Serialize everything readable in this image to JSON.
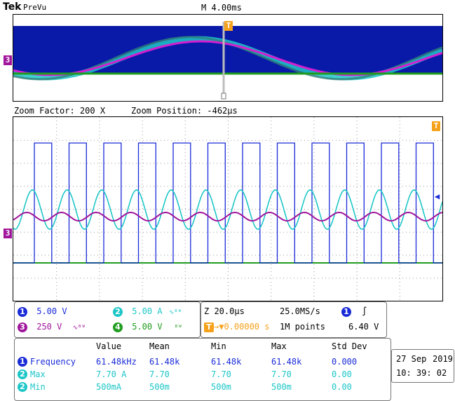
{
  "header": {
    "brand": "Tek",
    "mode": "PreVu",
    "timebase": "M 4.00ms"
  },
  "zoom": {
    "factor": "Zoom Factor: 200 X",
    "position": "Zoom Position: -462µs"
  },
  "markers": {
    "ch3_level": "3",
    "trigger": "T"
  },
  "channels": [
    {
      "num": "1",
      "scale": "5.00 V",
      "suffix": "",
      "color": "#1a2bd8"
    },
    {
      "num": "2",
      "scale": "5.00 A",
      "suffix": "∿ᴮᵂ",
      "color": "#1ec6c8"
    },
    {
      "num": "3",
      "scale": "250 V",
      "suffix": "∿ᴮᵂ",
      "color": "#a0159c"
    },
    {
      "num": "4",
      "scale": "5.00 V",
      "suffix": "ᴮᵂ",
      "color": "#1f9c1f"
    }
  ],
  "timebox": {
    "zoom_time": "Z 20.0µs",
    "sample_rate": "25.0MS/s",
    "trig_offset": "▼0.00000 s",
    "record": "1M points",
    "trig_source": "1",
    "trig_slope": "∫",
    "trig_level": "6.40 V"
  },
  "measurements": {
    "headers": [
      "Value",
      "Mean",
      "Min",
      "Max",
      "Std Dev"
    ],
    "rows": [
      {
        "ch": "1",
        "name": "Frequency",
        "value": "61.48kHz",
        "mean": "61.48k",
        "min": "61.48k",
        "max": "61.48k",
        "std": "0.000",
        "color": "#1a2bd8"
      },
      {
        "ch": "2",
        "name": "Max",
        "value": "7.70 A",
        "mean": "7.70",
        "min": "7.70",
        "max": "7.70",
        "std": "0.00",
        "color": "#1ec6c8"
      },
      {
        "ch": "2",
        "name": "Min",
        "value": "500mA",
        "mean": "500m",
        "min": "500m",
        "max": "500m",
        "std": "0.00",
        "color": "#1ec6c8"
      }
    ]
  },
  "date": {
    "day_month": "27 Sep",
    "year": "2019",
    "time": "10: 39: 02"
  },
  "colors": {
    "ch1": "#1a2bd8",
    "ch2": "#1ec6c8",
    "ch3": "#a0159c",
    "ch4": "#1f9c1f",
    "trigger": "#f5a11b",
    "preview_bg": "#0a1aa8"
  }
}
